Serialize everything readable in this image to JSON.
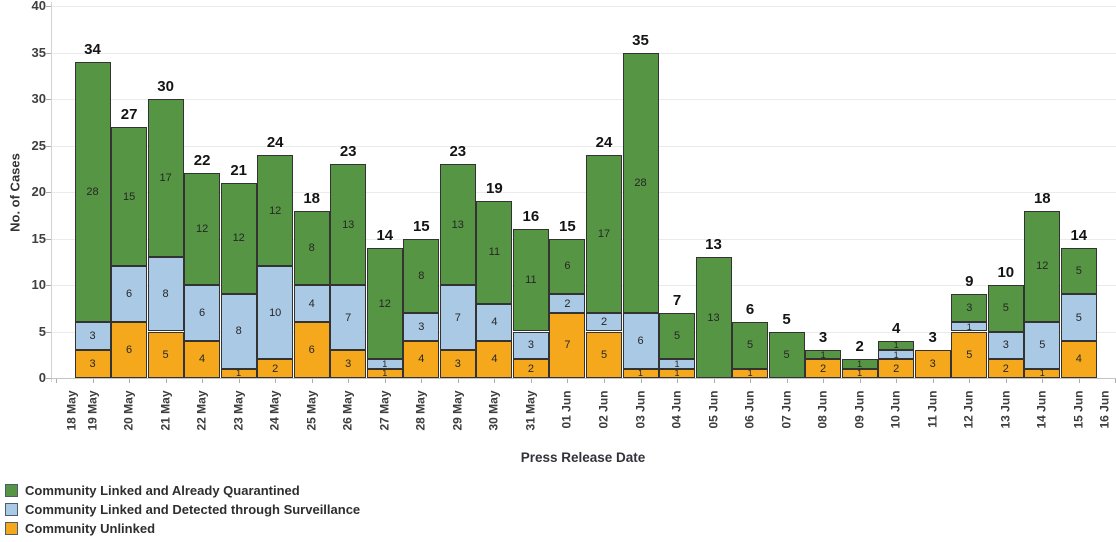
{
  "chart_data": {
    "type": "bar",
    "stacked": true,
    "title": "",
    "xlabel": "Press Release Date",
    "ylabel": "No. of Cases",
    "ylim": [
      0,
      40
    ],
    "y_ticks": [
      0,
      5,
      10,
      15,
      20,
      25,
      30,
      35,
      40
    ],
    "grid": "horizontal",
    "legend_position": "bottom-left",
    "axis_dates": [
      "18 May",
      "19 May",
      "20 May",
      "21 May",
      "22 May",
      "23 May",
      "24 May",
      "25 May",
      "26 May",
      "27 May",
      "28 May",
      "29 May",
      "30 May",
      "31 May",
      "01 Jun",
      "02 Jun",
      "03 Jun",
      "04 Jun",
      "05 Jun",
      "06 Jun",
      "07 Jun",
      "08 Jun",
      "09 Jun",
      "10 Jun",
      "11 Jun",
      "12 Jun",
      "13 Jun",
      "14 Jun",
      "15 Jun",
      "16 Jun"
    ],
    "categories": [
      "19 May",
      "20 May",
      "21 May",
      "22 May",
      "23 May",
      "24 May",
      "25 May",
      "26 May",
      "27 May",
      "28 May",
      "29 May",
      "30 May",
      "31 May",
      "01 Jun",
      "02 Jun",
      "03 Jun",
      "04 Jun",
      "05 Jun",
      "06 Jun",
      "07 Jun",
      "08 Jun",
      "09 Jun",
      "10 Jun",
      "11 Jun",
      "12 Jun",
      "13 Jun",
      "14 Jun",
      "15 Jun"
    ],
    "totals": [
      34,
      27,
      30,
      22,
      21,
      24,
      18,
      23,
      14,
      15,
      23,
      19,
      16,
      15,
      24,
      35,
      7,
      13,
      6,
      5,
      3,
      2,
      4,
      3,
      9,
      10,
      18,
      14
    ],
    "series": [
      {
        "name": "Community Linked and Already Quarantined",
        "color": "#569544",
        "values": [
          28,
          15,
          17,
          12,
          12,
          12,
          8,
          13,
          12,
          8,
          13,
          11,
          11,
          6,
          17,
          28,
          5,
          13,
          5,
          5,
          1,
          1,
          1,
          0,
          3,
          5,
          12,
          5
        ]
      },
      {
        "name": "Community Linked and Detected through Surveillance",
        "color": "#a9c9e5",
        "values": [
          3,
          6,
          8,
          6,
          8,
          10,
          4,
          7,
          1,
          3,
          7,
          4,
          3,
          2,
          2,
          6,
          1,
          0,
          0,
          0,
          0,
          0,
          1,
          0,
          1,
          3,
          5,
          5
        ]
      },
      {
        "name": "Community Unlinked",
        "color": "#f5a81c",
        "values": [
          3,
          6,
          5,
          4,
          1,
          2,
          6,
          3,
          1,
          4,
          3,
          4,
          2,
          7,
          5,
          1,
          1,
          0,
          1,
          0,
          2,
          1,
          2,
          3,
          5,
          2,
          1,
          4
        ]
      }
    ]
  }
}
